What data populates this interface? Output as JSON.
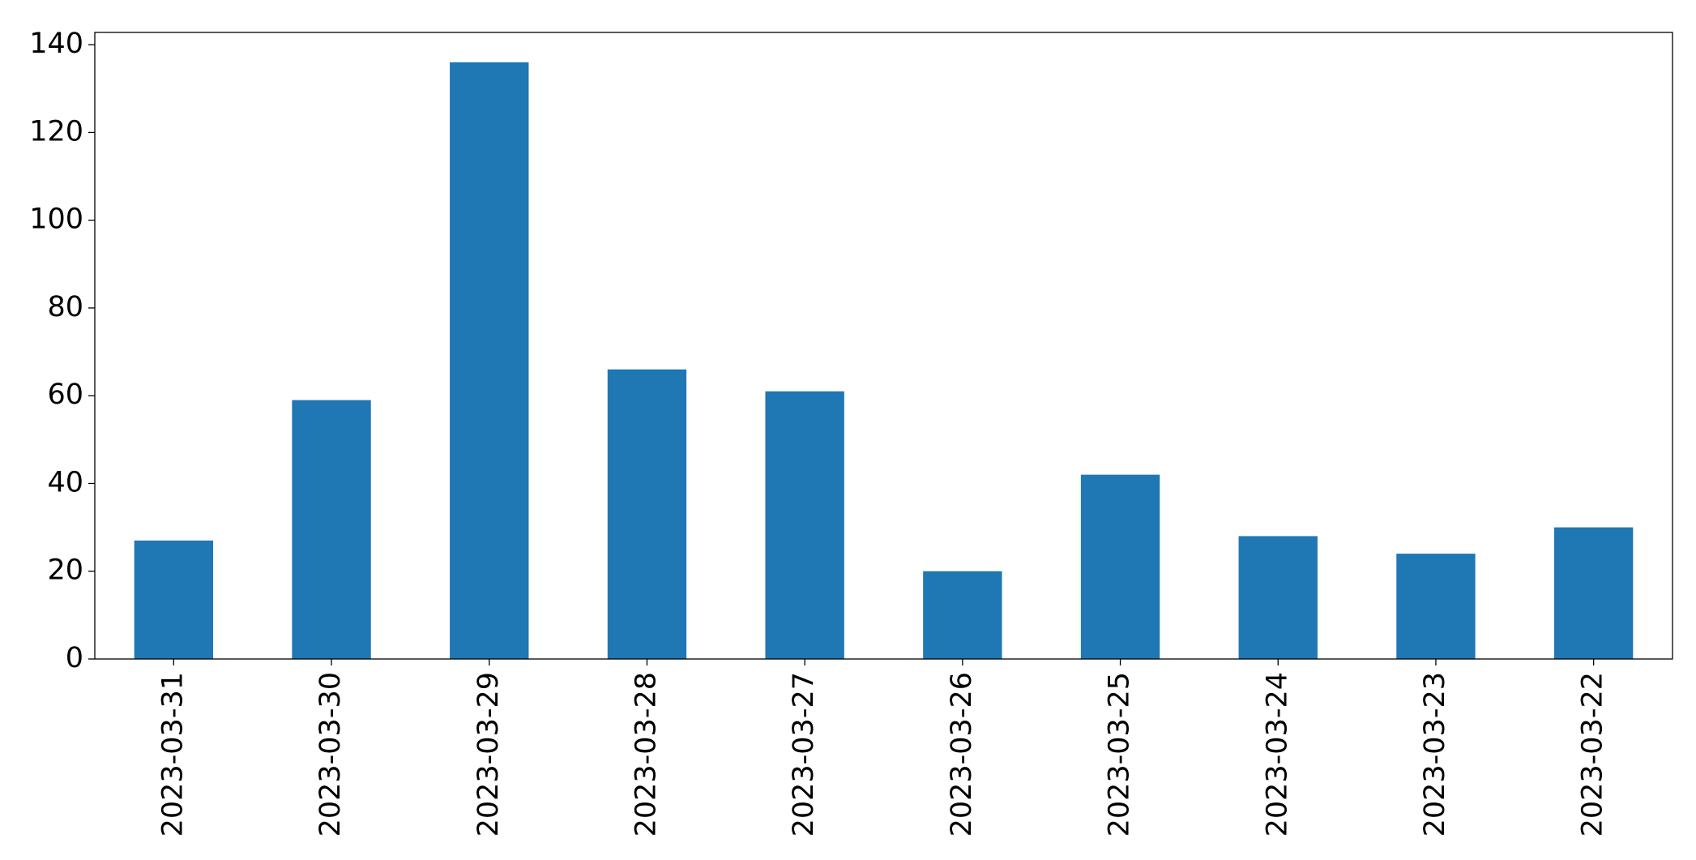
{
  "chart_data": {
    "type": "bar",
    "categories": [
      "2023-03-31",
      "2023-03-30",
      "2023-03-29",
      "2023-03-28",
      "2023-03-27",
      "2023-03-26",
      "2023-03-25",
      "2023-03-24",
      "2023-03-23",
      "2023-03-22"
    ],
    "values": [
      27,
      59,
      136,
      66,
      61,
      20,
      42,
      28,
      24,
      30
    ],
    "color": "#1f77b4",
    "ylim": [
      0,
      142.8
    ],
    "yticks": [
      0,
      20,
      40,
      60,
      80,
      100,
      120,
      140
    ],
    "grid": false
  }
}
